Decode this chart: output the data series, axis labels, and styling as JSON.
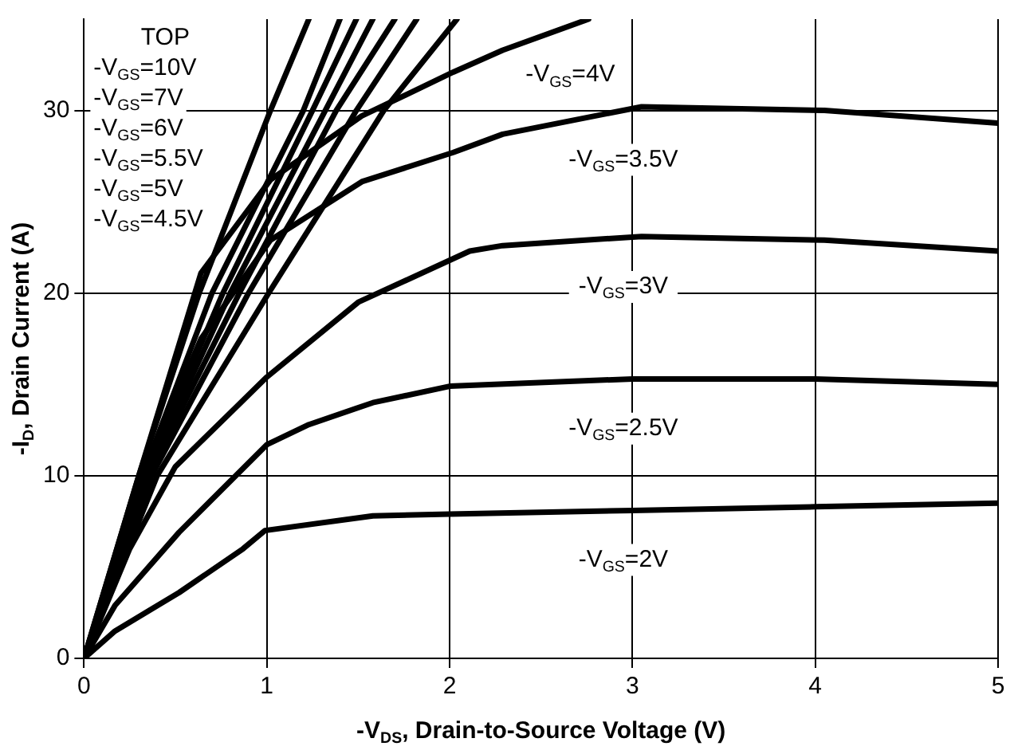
{
  "chart_data": {
    "type": "line",
    "xlabel": "-V$_{DS}$, Drain-to-Source Voltage (V)",
    "ylabel": "-I$_{D}$, Drain Current (A)",
    "xlim": [
      0,
      5
    ],
    "xticks": [
      0,
      1,
      2,
      3,
      4,
      5
    ],
    "ylim": [
      0,
      35
    ],
    "yticks": [
      0,
      10,
      20,
      30
    ],
    "grid": true,
    "legend": false,
    "marker": "none",
    "line_style": "solid",
    "series": [
      {
        "color": "#000000",
        "x": [
          0,
          0.3,
          0.63,
          1.02,
          1.23
        ],
        "values": [
          0,
          10,
          20,
          30,
          35
        ]
      },
      {
        "color": "#000000",
        "x": [
          0,
          0.32,
          0.7,
          1.2,
          1.4
        ],
        "values": [
          0,
          10,
          20,
          30,
          35
        ]
      },
      {
        "color": "#000000",
        "x": [
          0,
          0.33,
          0.76,
          1.25,
          1.49
        ],
        "values": [
          0,
          10,
          20,
          30,
          35
        ]
      },
      {
        "color": "#000000",
        "x": [
          0,
          0.34,
          0.8,
          1.32,
          1.58
        ],
        "values": [
          0,
          10,
          20,
          30,
          35
        ]
      },
      {
        "color": "#000000",
        "x": [
          0,
          0.35,
          0.85,
          1.38,
          1.7
        ],
        "values": [
          0,
          10,
          20,
          30,
          35
        ]
      },
      {
        "color": "#000000",
        "x": [
          0,
          0.37,
          0.9,
          1.49,
          1.82
        ],
        "values": [
          0,
          10,
          20,
          30,
          35
        ]
      },
      {
        "color": "#000000",
        "x": [
          0,
          0.4,
          1.01,
          1.64,
          2.04
        ],
        "values": [
          0,
          10,
          20,
          30,
          35
        ]
      },
      {
        "name": "-V$_{GS}$=4V",
        "color": "#000000",
        "x": [
          0,
          0.3,
          0.64,
          1.02,
          1.52,
          2.02,
          2.29,
          2.76
        ],
        "values": [
          0,
          10,
          21.1,
          26.2,
          29.7,
          32.1,
          33.3,
          35
        ]
      },
      {
        "name": "-V$_{GS}$=3.5V",
        "color": "#000000",
        "x": [
          0,
          0.3,
          0.64,
          1.02,
          1.52,
          2.02,
          2.29,
          3.05,
          4.05,
          5
        ],
        "values": [
          0,
          9.5,
          17.5,
          22.9,
          26.1,
          27.7,
          28.7,
          30.2,
          30,
          29.3
        ]
      },
      {
        "name": "-V$_{GS}$=3V",
        "color": "#000000",
        "x": [
          0,
          0.25,
          0.5,
          1,
          1.5,
          2.11,
          2.29,
          3.05,
          4.05,
          5
        ],
        "values": [
          0,
          6,
          10.5,
          15.4,
          19.5,
          22.3,
          22.6,
          23.1,
          22.9,
          22.3
        ]
      },
      {
        "name": "-V$_{GS}$=2.5V",
        "color": "#000000",
        "x": [
          0,
          0.17,
          0.52,
          1,
          1.23,
          1.58,
          2,
          3,
          4,
          5
        ],
        "values": [
          0,
          2.9,
          6.9,
          11.7,
          12.8,
          14,
          14.9,
          15.3,
          15.3,
          15
        ]
      },
      {
        "name": "-V$_{GS}$=2V",
        "color": "#000000",
        "x": [
          0,
          0.17,
          0.52,
          0.87,
          0.99,
          1.58,
          2,
          3,
          4,
          5
        ],
        "values": [
          0,
          1.5,
          3.6,
          6,
          7.0,
          7.8,
          7.9,
          8.1,
          8.3,
          8.5
        ]
      }
    ],
    "annotations": [
      "TOP",
      "-V$_{GS}$=10V",
      "-V$_{GS}$=7V",
      "-V$_{GS}$=6V",
      "-V$_{GS}$=5.5V",
      "-V$_{GS}$=5V",
      "-V$_{GS}$=4.5V"
    ]
  }
}
